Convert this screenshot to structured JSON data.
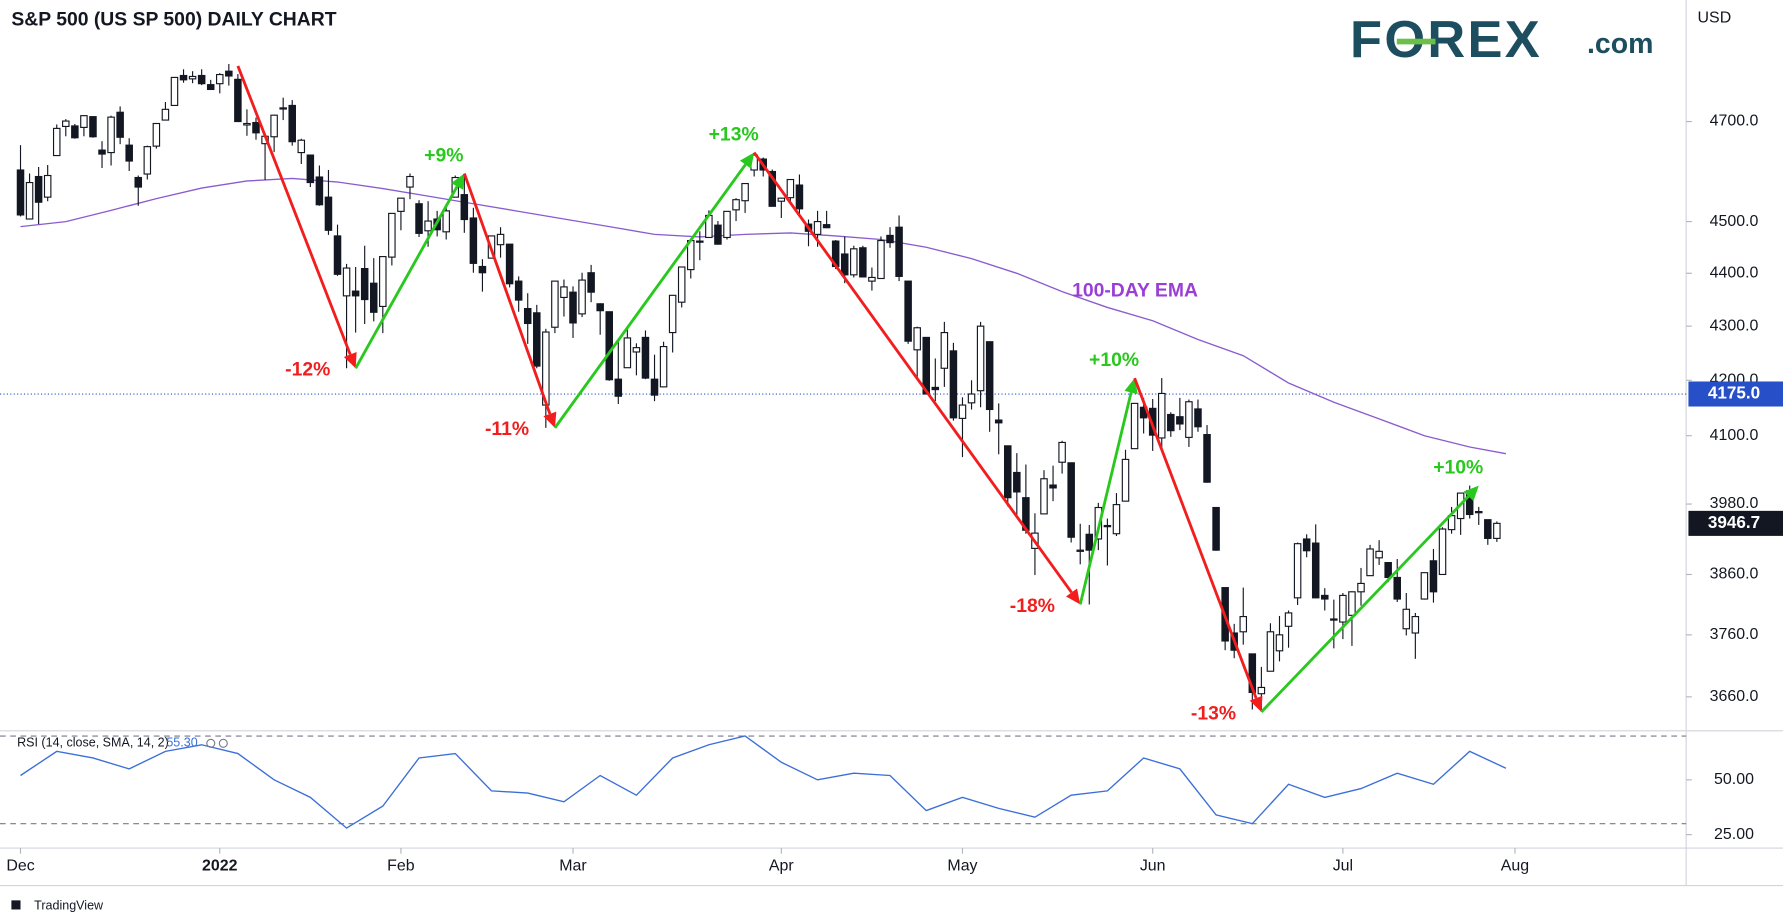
{
  "chart_data": {
    "type": "candlestick",
    "title": "S&P 500 (US SP 500) DAILY CHART",
    "currency": "USD",
    "logo": {
      "main": "FOREX",
      "suffix": ".com"
    },
    "footer": "TradingView",
    "log_scale": true,
    "up_color": "#ffffff",
    "down_color": "#131722",
    "outline_color": "#131722",
    "ylim": [
      3610,
      4955
    ],
    "yticks": [
      {
        "value": 4700,
        "label": "4700.0"
      },
      {
        "value": 4500,
        "label": "4500.0"
      },
      {
        "value": 4400,
        "label": "4400.0"
      },
      {
        "value": 4300,
        "label": "4300.0"
      },
      {
        "value": 4200,
        "label": "4200.0"
      },
      {
        "value": 4100,
        "label": "4100.0"
      },
      {
        "value": 3980,
        "label": "3980.0"
      },
      {
        "value": 3860,
        "label": "3860.0"
      },
      {
        "value": 3760,
        "label": "3760.0"
      },
      {
        "value": 3660,
        "label": "3660.0"
      }
    ],
    "xticks": [
      {
        "value": 0,
        "label": "Dec"
      },
      {
        "value": 22,
        "label": "2022"
      },
      {
        "value": 42,
        "label": "Feb"
      },
      {
        "value": 61,
        "label": "Mar"
      },
      {
        "value": 84,
        "label": "Apr"
      },
      {
        "value": 104,
        "label": "May"
      },
      {
        "value": 125,
        "label": "Jun"
      },
      {
        "value": 146,
        "label": "Jul"
      },
      {
        "value": 165,
        "label": "Aug"
      }
    ],
    "price_line": {
      "value": 4175,
      "label": "4175.0",
      "color": "#2750c8"
    },
    "ohlc": [
      [
        4602,
        4652,
        4510,
        4513
      ],
      [
        4505,
        4595,
        4504,
        4577
      ],
      [
        4589,
        4608,
        4495,
        4538
      ],
      [
        4548,
        4612,
        4540,
        4591
      ],
      [
        4631,
        4694,
        4631,
        4686
      ],
      [
        4690,
        4705,
        4670,
        4701
      ],
      [
        4691,
        4695,
        4665,
        4667
      ],
      [
        4688,
        4713,
        4670,
        4712
      ],
      [
        4710,
        4710,
        4667,
        4669
      ],
      [
        4642,
        4660,
        4606,
        4634
      ],
      [
        4637,
        4712,
        4611,
        4709
      ],
      [
        4719,
        4731,
        4654,
        4668
      ],
      [
        4652,
        4666,
        4600,
        4620
      ],
      [
        4587,
        4591,
        4531,
        4568
      ],
      [
        4594,
        4651,
        4583,
        4649
      ],
      [
        4650,
        4697,
        4645,
        4696
      ],
      [
        4703,
        4740,
        4703,
        4725
      ],
      [
        4733,
        4791,
        4733,
        4791
      ],
      [
        4795,
        4808,
        4780,
        4786
      ],
      [
        4788,
        4804,
        4779,
        4793
      ],
      [
        4795,
        4808,
        4775,
        4778
      ],
      [
        4776,
        4786,
        4765,
        4766
      ],
      [
        4778,
        4800,
        4758,
        4797
      ],
      [
        4804,
        4819,
        4774,
        4794
      ],
      [
        4787,
        4798,
        4699,
        4700
      ],
      [
        4693,
        4725,
        4671,
        4696
      ],
      [
        4698,
        4708,
        4663,
        4677
      ],
      [
        4655,
        4673,
        4582,
        4670
      ],
      [
        4669,
        4714,
        4638,
        4713
      ],
      [
        4728,
        4749,
        4703,
        4726
      ],
      [
        4733,
        4744,
        4651,
        4659
      ],
      [
        4637,
        4665,
        4614,
        4662
      ],
      [
        4632,
        4633,
        4568,
        4577
      ],
      [
        4588,
        4611,
        4531,
        4533
      ],
      [
        4548,
        4602,
        4474,
        4483
      ],
      [
        4472,
        4494,
        4395,
        4398
      ],
      [
        4357,
        4418,
        4222,
        4410
      ],
      [
        4366,
        4412,
        4288,
        4357
      ],
      [
        4409,
        4453,
        4304,
        4350
      ],
      [
        4381,
        4429,
        4309,
        4326
      ],
      [
        4337,
        4433,
        4287,
        4432
      ],
      [
        4431,
        4516,
        4415,
        4516
      ],
      [
        4520,
        4546,
        4483,
        4546
      ],
      [
        4568,
        4595,
        4544,
        4589
      ],
      [
        4535,
        4542,
        4470,
        4477
      ],
      [
        4482,
        4540,
        4451,
        4501
      ],
      [
        4505,
        4521,
        4471,
        4484
      ],
      [
        4480,
        4531,
        4465,
        4521
      ],
      [
        4548,
        4591,
        4548,
        4587
      ],
      [
        4553,
        4588,
        4478,
        4504
      ],
      [
        4507,
        4527,
        4401,
        4419
      ],
      [
        4413,
        4427,
        4365,
        4401
      ],
      [
        4429,
        4472,
        4429,
        4472
      ],
      [
        4455,
        4489,
        4430,
        4475
      ],
      [
        4456,
        4456,
        4373,
        4380
      ],
      [
        4385,
        4394,
        4327,
        4349
      ],
      [
        4333,
        4362,
        4267,
        4305
      ],
      [
        4325,
        4340,
        4222,
        4226
      ],
      [
        4155,
        4295,
        4114,
        4289
      ],
      [
        4298,
        4385,
        4287,
        4385
      ],
      [
        4354,
        4388,
        4318,
        4374
      ],
      [
        4364,
        4375,
        4278,
        4306
      ],
      [
        4323,
        4401,
        4317,
        4387
      ],
      [
        4401,
        4416,
        4345,
        4364
      ],
      [
        4342,
        4343,
        4284,
        4329
      ],
      [
        4327,
        4327,
        4199,
        4201
      ],
      [
        4202,
        4277,
        4157,
        4171
      ],
      [
        4223,
        4299,
        4223,
        4278
      ],
      [
        4252,
        4268,
        4209,
        4260
      ],
      [
        4279,
        4292,
        4202,
        4204
      ],
      [
        4202,
        4247,
        4162,
        4173
      ],
      [
        4188,
        4271,
        4187,
        4262
      ],
      [
        4288,
        4358,
        4251,
        4358
      ],
      [
        4345,
        4412,
        4335,
        4412
      ],
      [
        4407,
        4465,
        4390,
        4463
      ],
      [
        4462,
        4481,
        4425,
        4461
      ],
      [
        4469,
        4522,
        4469,
        4512
      ],
      [
        4493,
        4501,
        4455,
        4456
      ],
      [
        4469,
        4520,
        4465,
        4520
      ],
      [
        4523,
        4546,
        4501,
        4543
      ],
      [
        4541,
        4575,
        4517,
        4575
      ],
      [
        4602,
        4637,
        4589,
        4632
      ],
      [
        4624,
        4627,
        4589,
        4602
      ],
      [
        4599,
        4603,
        4530,
        4530
      ],
      [
        4540,
        4547,
        4507,
        4546
      ],
      [
        4547,
        4583,
        4539,
        4583
      ],
      [
        4572,
        4593,
        4514,
        4525
      ],
      [
        4495,
        4504,
        4452,
        4481
      ],
      [
        4475,
        4521,
        4451,
        4500
      ],
      [
        4494,
        4521,
        4487,
        4488
      ],
      [
        4462,
        4464,
        4408,
        4413
      ],
      [
        4437,
        4471,
        4381,
        4397
      ],
      [
        4397,
        4453,
        4392,
        4447
      ],
      [
        4449,
        4453,
        4392,
        4393
      ],
      [
        4385,
        4411,
        4367,
        4392
      ],
      [
        4390,
        4471,
        4390,
        4463
      ],
      [
        4473,
        4489,
        4449,
        4459
      ],
      [
        4489,
        4512,
        4385,
        4394
      ],
      [
        4385,
        4385,
        4267,
        4272
      ],
      [
        4256,
        4299,
        4201,
        4297
      ],
      [
        4279,
        4279,
        4175,
        4175
      ],
      [
        4187,
        4240,
        4162,
        4183
      ],
      [
        4222,
        4308,
        4188,
        4288
      ],
      [
        4254,
        4269,
        4127,
        4132
      ],
      [
        4131,
        4169,
        4062,
        4155
      ],
      [
        4159,
        4200,
        4147,
        4175
      ],
      [
        4181,
        4308,
        4151,
        4300
      ],
      [
        4271,
        4271,
        4107,
        4147
      ],
      [
        4128,
        4158,
        4067,
        4123
      ],
      [
        4082,
        4082,
        3976,
        3991
      ],
      [
        4035,
        4069,
        3958,
        4001
      ],
      [
        3991,
        4049,
        3929,
        3935
      ],
      [
        3904,
        3964,
        3859,
        3930
      ],
      [
        3963,
        4039,
        3963,
        4024
      ],
      [
        4013,
        4047,
        3985,
        4008
      ],
      [
        4053,
        4091,
        4033,
        4088
      ],
      [
        4052,
        4052,
        3914,
        3923
      ],
      [
        3899,
        3946,
        3877,
        3901
      ],
      [
        3928,
        3944,
        3810,
        3901
      ],
      [
        3920,
        3982,
        3901,
        3974
      ],
      [
        3943,
        3955,
        3875,
        3941
      ],
      [
        3929,
        3999,
        3925,
        3979
      ],
      [
        3985,
        4075,
        3985,
        4058
      ],
      [
        4077,
        4158,
        4077,
        4158
      ],
      [
        4151,
        4168,
        4104,
        4132
      ],
      [
        4149,
        4166,
        4073,
        4101
      ],
      [
        4096,
        4204,
        4075,
        4176
      ],
      [
        4138,
        4142,
        4098,
        4109
      ],
      [
        4134,
        4168,
        4110,
        4121
      ],
      [
        4097,
        4165,
        4080,
        4161
      ],
      [
        4148,
        4165,
        4107,
        4116
      ],
      [
        4102,
        4119,
        4017,
        4018
      ],
      [
        3974,
        3974,
        3900,
        3901
      ],
      [
        3838,
        3838,
        3735,
        3750
      ],
      [
        3763,
        3778,
        3722,
        3735
      ],
      [
        3765,
        3838,
        3744,
        3790
      ],
      [
        3729,
        3729,
        3640,
        3667
      ],
      [
        3665,
        3708,
        3636,
        3675
      ],
      [
        3701,
        3779,
        3701,
        3765
      ],
      [
        3734,
        3791,
        3717,
        3760
      ],
      [
        3774,
        3800,
        3739,
        3796
      ],
      [
        3821,
        3914,
        3809,
        3912
      ],
      [
        3920,
        3928,
        3889,
        3900
      ],
      [
        3913,
        3945,
        3820,
        3821
      ],
      [
        3825,
        3837,
        3800,
        3819
      ],
      [
        3786,
        3818,
        3738,
        3785
      ],
      [
        3781,
        3829,
        3753,
        3825
      ],
      [
        3792,
        3832,
        3742,
        3831
      ],
      [
        3831,
        3871,
        3808,
        3845
      ],
      [
        3858,
        3910,
        3858,
        3903
      ],
      [
        3888,
        3918,
        3876,
        3899
      ],
      [
        3880,
        3880,
        3847,
        3855
      ],
      [
        3855,
        3886,
        3814,
        3819
      ],
      [
        3770,
        3829,
        3759,
        3802
      ],
      [
        3763,
        3796,
        3721,
        3790
      ],
      [
        3819,
        3863,
        3818,
        3863
      ],
      [
        3883,
        3903,
        3813,
        3831
      ],
      [
        3860,
        3940,
        3860,
        3937
      ],
      [
        3936,
        3975,
        3929,
        3960
      ],
      [
        3955,
        3999,
        3927,
        3999
      ],
      [
        4003,
        4012,
        3955,
        3962
      ],
      [
        3965,
        3975,
        3944,
        3967
      ],
      [
        3953,
        3953,
        3910,
        3921
      ],
      [
        3921,
        3950,
        3915,
        3946.7
      ]
    ],
    "ema": {
      "label": "100-DAY EMA",
      "color": "#8a5cd0",
      "x": [
        0,
        5,
        10,
        15,
        20,
        25,
        30,
        35,
        40,
        45,
        50,
        55,
        60,
        65,
        70,
        75,
        80,
        85,
        90,
        95,
        100,
        105,
        110,
        115,
        120,
        125,
        130,
        135,
        140,
        145,
        150,
        155,
        160,
        164
      ],
      "values": [
        4490,
        4500,
        4522,
        4545,
        4566,
        4580,
        4585,
        4578,
        4565,
        4550,
        4535,
        4520,
        4505,
        4490,
        4475,
        4470,
        4475,
        4478,
        4472,
        4465,
        4450,
        4428,
        4400,
        4365,
        4335,
        4310,
        4275,
        4245,
        4195,
        4160,
        4130,
        4100,
        4080,
        4068
      ]
    },
    "annotations": [
      {
        "value": -12,
        "label": "-12%",
        "from": [
          24,
          4815
        ],
        "to": [
          37,
          4222
        ]
      },
      {
        "value": 9,
        "label": "+9%",
        "from": [
          37,
          4222
        ],
        "to": [
          49,
          4595
        ]
      },
      {
        "value": -11,
        "label": "-11%",
        "from": [
          49,
          4595
        ],
        "to": [
          59,
          4114
        ]
      },
      {
        "value": 13,
        "label": "+13%",
        "from": [
          59,
          4114
        ],
        "to": [
          81,
          4637
        ]
      },
      {
        "value": -18,
        "label": "-18%",
        "from": [
          81,
          4637
        ],
        "to": [
          117,
          3810
        ]
      },
      {
        "value": 10,
        "label": "+10%",
        "from": [
          117,
          3810
        ],
        "to": [
          123,
          4204
        ]
      },
      {
        "value": -13,
        "label": "-13%",
        "from": [
          123,
          4204
        ],
        "to": [
          137,
          3636
        ]
      },
      {
        "value": 10,
        "label": "+10%",
        "from": [
          137,
          3636
        ],
        "to": [
          161,
          4012
        ]
      }
    ],
    "annotation_colors": {
      "up": "#28c81e",
      "down": "#f21e1e"
    },
    "rsi": {
      "label": "RSI (14, close, SMA, 14, 2)",
      "color": "#3b6fd8",
      "ylim": [
        18.9,
        72.4
      ],
      "yticks": [
        {
          "value": 50,
          "label": "50.00"
        },
        {
          "value": 25,
          "label": "25.00"
        }
      ],
      "bands": [
        70,
        30
      ],
      "x": [
        0,
        4,
        8,
        12,
        16,
        20,
        24,
        28,
        32,
        36,
        40,
        44,
        48,
        52,
        56,
        60,
        64,
        68,
        72,
        76,
        80,
        84,
        88,
        92,
        96,
        100,
        104,
        108,
        112,
        116,
        120,
        124,
        128,
        132,
        136,
        140,
        144,
        148,
        152,
        156,
        160,
        164
      ],
      "values": [
        52,
        63,
        60,
        55,
        63,
        66,
        62,
        50,
        42,
        28,
        38,
        60,
        62,
        45,
        44,
        40,
        52,
        43,
        60,
        66,
        70,
        58,
        50,
        53,
        52,
        36,
        42,
        37,
        33,
        43,
        45,
        60,
        55,
        34,
        30,
        48,
        42,
        46,
        53,
        48,
        63,
        55.3
      ],
      "value_label": "55.30"
    }
  }
}
